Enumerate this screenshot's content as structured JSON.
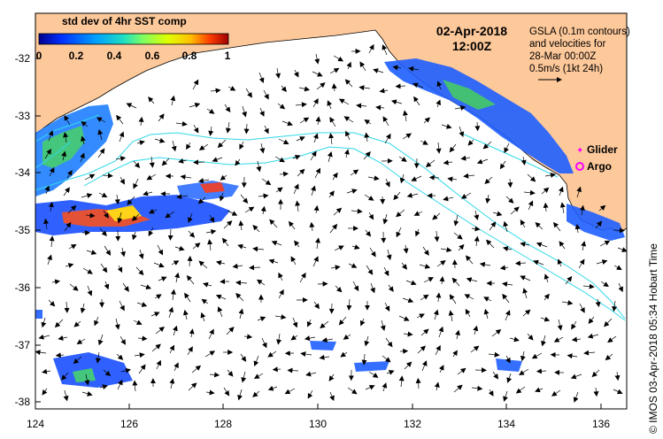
{
  "colorbar": {
    "title": "std dev of 4hr SST comp",
    "ticks": [
      "0",
      "0.2",
      "0.4",
      "0.6",
      "0.8",
      "1"
    ],
    "colors": [
      "#00008f",
      "#0030ff",
      "#00a0ff",
      "#20e0c0",
      "#80ff60",
      "#e0ff00",
      "#ffc000",
      "#ff4000",
      "#a00000"
    ]
  },
  "date": {
    "line1": "02-Apr-2018",
    "line2": "12:00Z"
  },
  "gsla": {
    "line1": "GSLA (0.1m contours)",
    "line2": "and velocities for",
    "line3": "28-Mar 00:00Z",
    "line4": "0.5m/s (1kt 24h)"
  },
  "legend": {
    "glider": {
      "label": "Glider",
      "color": "#ff00ff"
    },
    "argo": {
      "label": "Argo",
      "color": "#ff00ff"
    }
  },
  "axes": {
    "lat_labels": [
      "-32",
      "-33",
      "-34",
      "-35",
      "-36",
      "-37",
      "-38"
    ],
    "lon_labels": [
      "124",
      "126",
      "128",
      "130",
      "132",
      "134",
      "136"
    ]
  },
  "credit": "© IMOS 03-Apr-2018 05:34 Hobart Time",
  "colors": {
    "land": "#fdc89a",
    "ocean": "#ffffff",
    "contour": "#30d8e8",
    "arrow": "#000000"
  }
}
